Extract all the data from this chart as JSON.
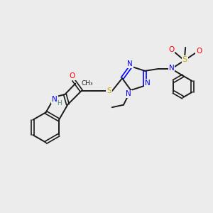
{
  "bg_color": "#ececec",
  "bond_color": "#1a1a1a",
  "N_color": "#0000ff",
  "O_color": "#ff0000",
  "S_color": "#ccaa00",
  "H_color": "#4a8a8a",
  "figsize": [
    3.0,
    3.0
  ],
  "dpi": 100,
  "xlim": [
    0,
    10
  ],
  "ylim": [
    0,
    10
  ]
}
